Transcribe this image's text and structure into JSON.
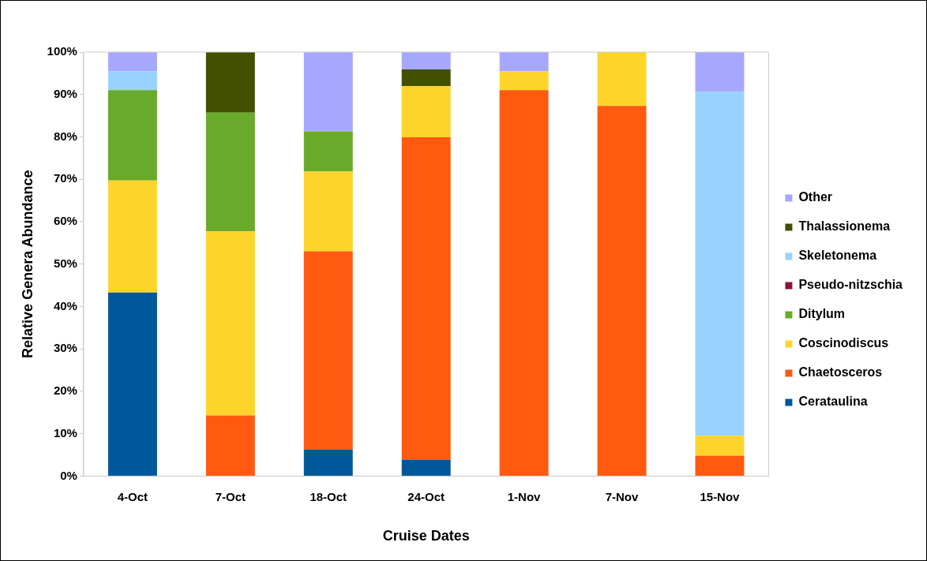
{
  "chart_data": {
    "type": "bar",
    "stacked": true,
    "xlabel": "Cruise Dates",
    "ylabel": "Relative Genera Abundance",
    "categories": [
      "4-Oct",
      "7-Oct",
      "18-Oct",
      "24-Oct",
      "1-Nov",
      "7-Nov",
      "15-Nov"
    ],
    "series": [
      {
        "name": "Cerataulina",
        "color": "#00589a",
        "values": [
          43.3,
          0,
          6.2,
          3.8,
          0,
          0,
          0
        ]
      },
      {
        "name": "Chaetosceros",
        "color": "#ff5a10",
        "values": [
          0,
          14.3,
          46.8,
          76.1,
          91,
          87.3,
          4.8
        ]
      },
      {
        "name": "Coscinodiscus",
        "color": "#fdd52a",
        "values": [
          26.4,
          43.4,
          18.8,
          12.1,
          4.5,
          12.7,
          4.7
        ]
      },
      {
        "name": "Ditylum",
        "color": "#6aaa2a",
        "values": [
          21.3,
          28,
          9.4,
          0,
          0,
          0,
          0
        ]
      },
      {
        "name": "Pseudo-nitzschia",
        "color": "#8b1538",
        "values": [
          0,
          0,
          0,
          0,
          0,
          0,
          0
        ]
      },
      {
        "name": "Skeletonema",
        "color": "#99d3fd",
        "values": [
          4.5,
          0,
          0,
          0,
          0,
          0,
          81.1
        ]
      },
      {
        "name": "Thalassionema",
        "color": "#425000",
        "values": [
          0,
          14.3,
          0,
          3.9,
          0,
          0,
          0
        ]
      },
      {
        "name": "Other",
        "color": "#a6a8ff",
        "values": [
          4.5,
          0,
          18.8,
          4.1,
          4.5,
          0,
          9.4
        ]
      }
    ],
    "ylim": [
      0,
      100
    ],
    "yticks": [
      {
        "value": 0,
        "label": "0%"
      },
      {
        "value": 10,
        "label": "10%"
      },
      {
        "value": 20,
        "label": "20%"
      },
      {
        "value": 30,
        "label": "30%"
      },
      {
        "value": 40,
        "label": "40%"
      },
      {
        "value": 50,
        "label": "50%"
      },
      {
        "value": 60,
        "label": "60%"
      },
      {
        "value": 70,
        "label": "70%"
      },
      {
        "value": 80,
        "label": "80%"
      },
      {
        "value": 90,
        "label": "90%"
      },
      {
        "value": 100,
        "label": "100%"
      }
    ],
    "grid": false,
    "legend": "right"
  }
}
